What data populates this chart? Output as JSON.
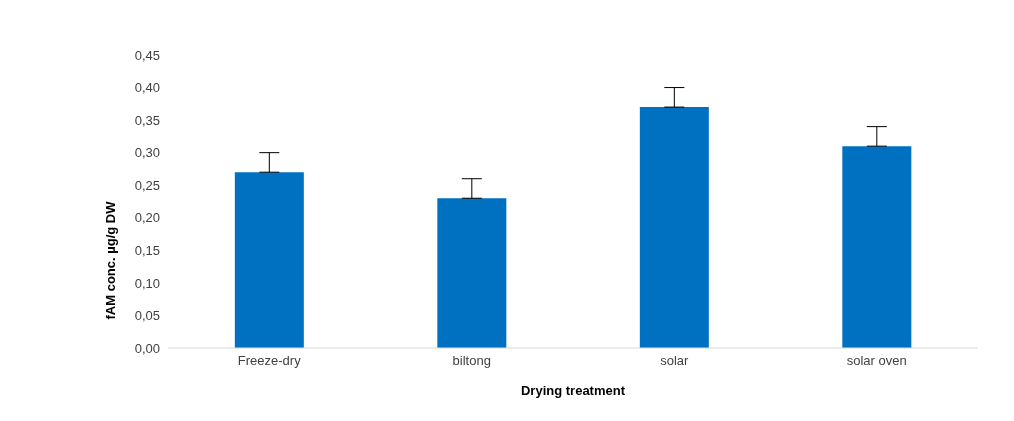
{
  "chart_data": {
    "type": "bar",
    "xlabel": "Drying treatment",
    "ylabel": "fAM conc. µg/g DW",
    "categories": [
      "Freeze-dry",
      "biltong",
      "solar",
      "solar oven"
    ],
    "values": [
      0.27,
      0.23,
      0.37,
      0.31
    ],
    "errors": [
      [
        0.27,
        0.3
      ],
      [
        0.23,
        0.26
      ],
      [
        0.37,
        0.4
      ],
      [
        0.31,
        0.34
      ]
    ],
    "color": "#0070c0",
    "ylim": [
      0,
      0.45
    ],
    "yticks": [
      {
        "value": 0,
        "label": "0,00"
      },
      {
        "value": 0.05,
        "label": "0,05"
      },
      {
        "value": 0.1,
        "label": "0,10"
      },
      {
        "value": 0.15,
        "label": "0,15"
      },
      {
        "value": 0.2,
        "label": "0,20"
      },
      {
        "value": 0.25,
        "label": "0,25"
      },
      {
        "value": 0.3,
        "label": "0,30"
      },
      {
        "value": 0.35,
        "label": "0,35"
      },
      {
        "value": 0.4,
        "label": "0,40"
      },
      {
        "value": 0.45,
        "label": "0,45"
      }
    ],
    "grid": false,
    "legend": false
  }
}
